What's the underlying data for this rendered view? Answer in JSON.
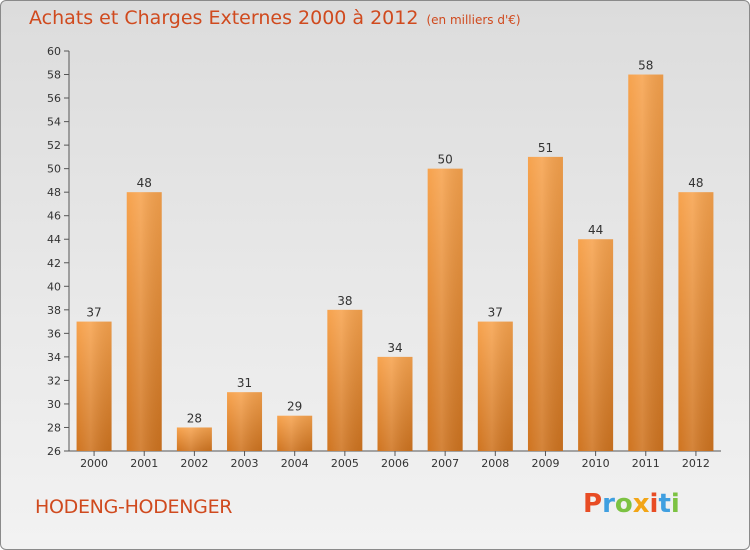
{
  "header": {
    "title": "Achats et Charges Externes 2000 à 2012",
    "subtitle": "(en milliers d'€)"
  },
  "commune": "HODENG-HODENGER",
  "logo": {
    "text": "Proxiti",
    "colors": [
      "#e84c24",
      "#3f9fe0",
      "#7cc242",
      "#f2a516",
      "#e84c24",
      "#3f9fe0",
      "#7cc242"
    ]
  },
  "chart_data": {
    "type": "bar",
    "categories": [
      "2000",
      "2001",
      "2002",
      "2003",
      "2004",
      "2005",
      "2006",
      "2007",
      "2008",
      "2009",
      "2010",
      "2011",
      "2012"
    ],
    "values": [
      37,
      48,
      28,
      31,
      29,
      38,
      34,
      50,
      37,
      51,
      44,
      58,
      48
    ],
    "title": "Achats et Charges Externes 2000 à 2012",
    "xlabel": "",
    "ylabel": "",
    "ylim": [
      26,
      60
    ],
    "yticks": [
      26,
      28,
      30,
      32,
      34,
      36,
      38,
      40,
      42,
      44,
      46,
      48,
      50,
      52,
      54,
      56,
      58,
      60
    ],
    "grid": false,
    "bar_color": "#f0913a"
  }
}
